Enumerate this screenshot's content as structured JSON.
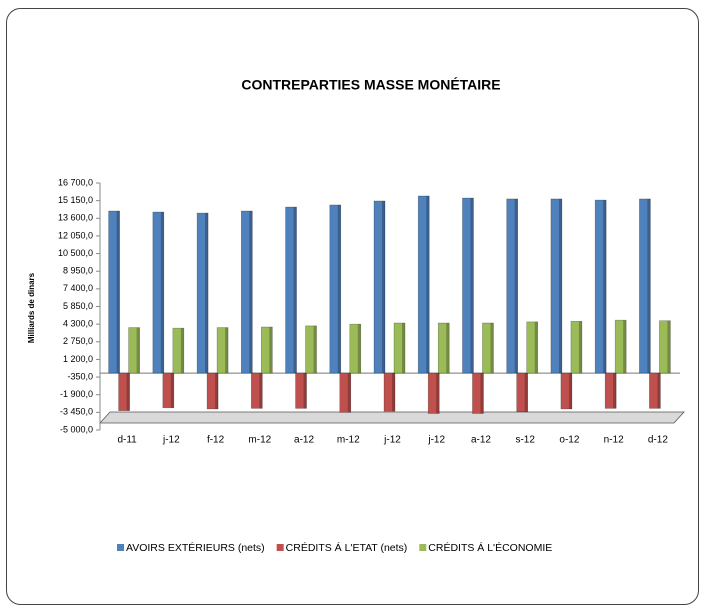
{
  "chart_data": {
    "type": "bar",
    "title": "CONTREPARTIES MASSE MONÉTAIRE",
    "y_label": "Milliards de dinars",
    "categories": [
      "d-11",
      "j-12",
      "f-12",
      "m-12",
      "a-12",
      "m-12",
      "j-12",
      "j-12",
      "a-12",
      "s-12",
      "o-12",
      "n-12",
      "d-12"
    ],
    "series": [
      {
        "name": "AVOIRS EXTÉRIEURS (nets)",
        "color": "#4f81bd",
        "values": [
          14240,
          14150,
          14060,
          14240,
          14590,
          14770,
          15120,
          15560,
          15380,
          15300,
          15300,
          15200,
          15300
        ]
      },
      {
        "name": "CRÉDITS Á L'ETAT (nets)",
        "color": "#c0504d",
        "values": [
          -3300,
          -3050,
          -3150,
          -3100,
          -3100,
          -3450,
          -3350,
          -3550,
          -3550,
          -3400,
          -3150,
          -3100,
          -3100
        ]
      },
      {
        "name": "CRÉDITS Á  L'ÉCONOMIE",
        "color": "#9bbb59",
        "values": [
          4000,
          3950,
          4000,
          4050,
          4150,
          4300,
          4400,
          4400,
          4400,
          4500,
          4550,
          4650,
          4600
        ]
      }
    ],
    "ylim": [
      -5000,
      16700
    ],
    "yticks": [
      {
        "value": -5000,
        "label": "-5 000,0"
      },
      {
        "value": -3450,
        "label": "-3 450,0"
      },
      {
        "value": -1900,
        "label": "-1 900,0"
      },
      {
        "value": -350,
        "label": "-350,0"
      },
      {
        "value": 1200,
        "label": "1 200,0"
      },
      {
        "value": 2750,
        "label": "2 750,0"
      },
      {
        "value": 4300,
        "label": "4 300,0"
      },
      {
        "value": 5850,
        "label": "5 850,0"
      },
      {
        "value": 7400,
        "label": "7 400,0"
      },
      {
        "value": 8950,
        "label": "8 950,0"
      },
      {
        "value": 10500,
        "label": "10 500,0"
      },
      {
        "value": 12050,
        "label": "12 050,0"
      },
      {
        "value": 13600,
        "label": "13 600,0"
      },
      {
        "value": 15150,
        "label": "15 150,0"
      },
      {
        "value": 16700,
        "label": "16 700,0"
      }
    ],
    "legend": "bottom"
  }
}
